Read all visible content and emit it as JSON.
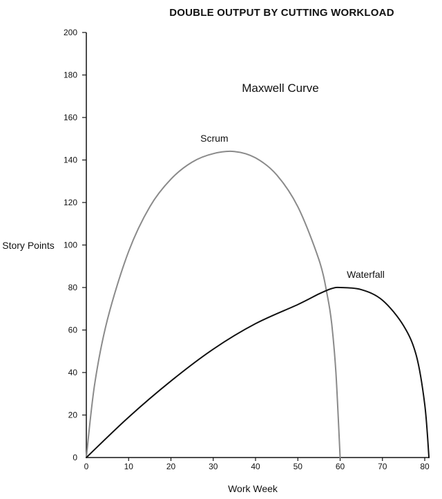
{
  "chart_data": {
    "type": "line",
    "title": "DOUBLE OUTPUT BY CUTTING WORKLOAD",
    "annotation": "Maxwell Curve",
    "xlabel": "Work Week",
    "ylabel": "Story Points",
    "xlim": [
      0,
      80
    ],
    "ylim": [
      0,
      200
    ],
    "xticks": [
      0,
      10,
      20,
      30,
      40,
      50,
      60,
      70,
      80
    ],
    "yticks": [
      0,
      20,
      40,
      60,
      80,
      100,
      120,
      140,
      160,
      180,
      200
    ],
    "grid": false,
    "legend": "inline",
    "series": [
      {
        "name": "Scrum",
        "color": "#8a8a8a",
        "x": [
          0,
          2,
          5,
          10,
          15,
          20,
          25,
          30,
          35,
          40,
          45,
          50,
          55,
          57,
          58,
          59,
          60
        ],
        "y": [
          0,
          35,
          65,
          97,
          118,
          131,
          139,
          143,
          144,
          141,
          133,
          118,
          93,
          76,
          63,
          40,
          0
        ]
      },
      {
        "name": "Waterfall",
        "color": "#111111",
        "x": [
          0,
          10,
          20,
          30,
          40,
          50,
          55,
          58,
          60,
          65,
          70,
          75,
          78,
          80,
          81
        ],
        "y": [
          0,
          19,
          36,
          51,
          63,
          72,
          77,
          79.5,
          80,
          79,
          74,
          62,
          48,
          25,
          0
        ]
      }
    ]
  }
}
